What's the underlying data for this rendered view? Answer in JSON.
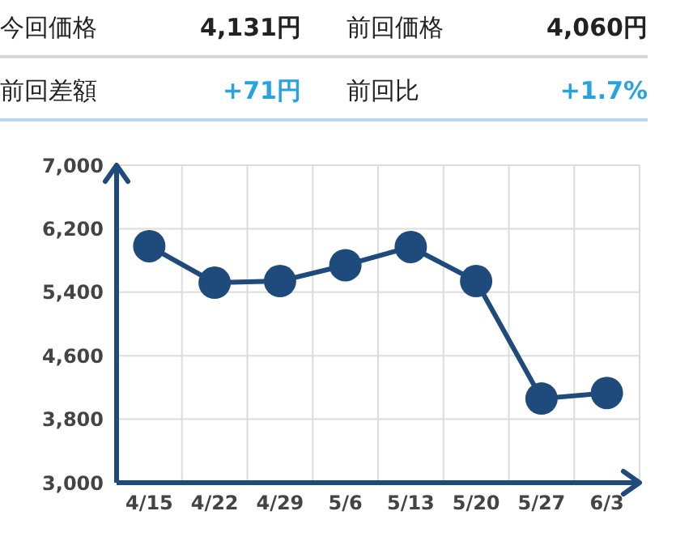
{
  "chart_data": {
    "type": "line",
    "annotations": [
      "今回価格",
      "4,131円",
      "前回価格",
      "4,060円",
      "前回差額",
      "+71円",
      "前回比",
      "+1.7%"
    ],
    "categories": [
      "4/15",
      "4/22",
      "4/29",
      "5/6",
      "5/13",
      "5/20",
      "5/27",
      "6/3"
    ],
    "series": [
      {
        "color": "#1f4a7c",
        "values": [
          5980,
          5520,
          5540,
          5740,
          5970,
          5540,
          4060,
          4131
        ]
      }
    ],
    "ylim": [
      3000,
      7000
    ],
    "yticks": [
      {
        "value": 3000,
        "label": "3,000"
      },
      {
        "value": 3800,
        "label": "3,800"
      },
      {
        "value": 4600,
        "label": "4,600"
      },
      {
        "value": 5400,
        "label": "5,400"
      },
      {
        "value": 6200,
        "label": "6,200"
      },
      {
        "value": 7000,
        "label": "7,000"
      }
    ],
    "grid": true,
    "marker": "circle",
    "line_style": "solid"
  }
}
